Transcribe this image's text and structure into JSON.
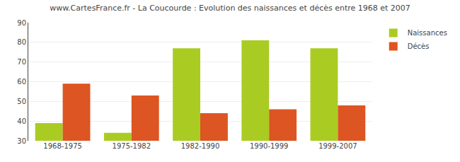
{
  "chart_data": {
    "type": "bar",
    "title": "www.CartesFrance.fr - La Coucourde : Evolution des naissances et décès entre 1968 et 2007",
    "categories": [
      "1968-1975",
      "1975-1982",
      "1982-1990",
      "1990-1999",
      "1999-2007"
    ],
    "series": [
      {
        "name": "Naissances",
        "color": "#aacc22",
        "values": [
          39,
          34,
          77,
          81,
          77
        ]
      },
      {
        "name": "Décès",
        "color": "#dd5522",
        "values": [
          59,
          53,
          44,
          46,
          48
        ]
      }
    ],
    "ylim": [
      30,
      90
    ],
    "yticks": [
      30,
      40,
      50,
      60,
      70,
      80,
      90
    ],
    "grid": true,
    "legend": "upper right"
  }
}
